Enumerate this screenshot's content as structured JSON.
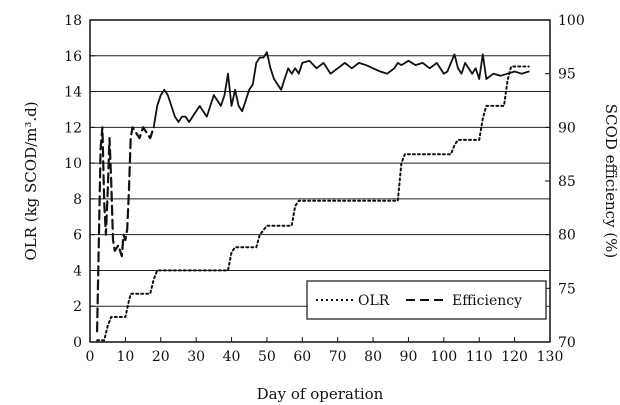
{
  "chart_data": {
    "type": "line",
    "title": "",
    "xlabel": "Day of operation",
    "ylabel_left": "OLR (kg SCOD/m³.d)",
    "ylabel_right": "SCOD efficiency (%)",
    "xlim": [
      0,
      130
    ],
    "ylim_left": [
      0,
      18
    ],
    "ylim_right": [
      70,
      100
    ],
    "x_ticks": [
      "0",
      "10",
      "20",
      "30",
      "40",
      "50",
      "60",
      "70",
      "80",
      "90",
      "100",
      "110",
      "120",
      "130"
    ],
    "y_left_ticks": [
      "0",
      "2",
      "4",
      "6",
      "8",
      "10",
      "12",
      "14",
      "16",
      "18"
    ],
    "y_right_ticks": [
      "70",
      "75",
      "80",
      "85",
      "90",
      "95",
      "100"
    ],
    "grid": "horizontal",
    "legend": {
      "placement": "bottom-right",
      "entries": [
        "OLR",
        "Efficiency"
      ]
    },
    "series": [
      {
        "name": "OLR",
        "axis": "left",
        "style": "dotted",
        "x": [
          2,
          4,
          5,
          6,
          6.5,
          10,
          11,
          11.5,
          17,
          18,
          19,
          39,
          40,
          41,
          47,
          48,
          50,
          57,
          58,
          59,
          87,
          88,
          89,
          102,
          103,
          104,
          110,
          111,
          112,
          117,
          118,
          119,
          124
        ],
        "y": [
          0.1,
          0.1,
          0.9,
          1.4,
          1.4,
          1.4,
          2.3,
          2.7,
          2.7,
          3.5,
          4.0,
          4.0,
          5.0,
          5.3,
          5.3,
          6.0,
          6.5,
          6.5,
          7.6,
          7.9,
          7.9,
          10.0,
          10.5,
          10.5,
          11.0,
          11.3,
          11.3,
          12.5,
          13.2,
          13.2,
          14.6,
          15.4,
          15.4
        ]
      },
      {
        "name": "Efficiency",
        "axis": "right",
        "style": "dashed",
        "x": [
          2,
          3,
          3.5,
          4,
          4.5,
          5,
          5.5,
          6,
          6.5,
          7,
          8,
          9,
          9.5,
          10,
          10.5,
          11,
          11.5,
          12,
          13,
          14,
          15,
          16,
          17,
          18
        ],
        "y": [
          71,
          88,
          90,
          83,
          80,
          84,
          89,
          85,
          79.5,
          78.5,
          79,
          78,
          80,
          79.5,
          80.5,
          84,
          89,
          90,
          89.5,
          89,
          90,
          89.5,
          89,
          90
        ]
      },
      {
        "name": "",
        "axis": "right",
        "style": "solid",
        "x": [
          18,
          19,
          20,
          21,
          22,
          23,
          24,
          25,
          26,
          27,
          28,
          29,
          30,
          31,
          32,
          33,
          34,
          35,
          36,
          37,
          38,
          39,
          40,
          41,
          42,
          43,
          44,
          45,
          46,
          47,
          48,
          49,
          50,
          51,
          52,
          53,
          54,
          55,
          56,
          57,
          58,
          59,
          60,
          62,
          64,
          66,
          68,
          70,
          72,
          74,
          76,
          78,
          80,
          82,
          84,
          86,
          87,
          88,
          90,
          92,
          94,
          96,
          98,
          100,
          101,
          102,
          103,
          104,
          105,
          106,
          108,
          109,
          110,
          111,
          112,
          114,
          116,
          118,
          120,
          122,
          124
        ],
        "y": [
          90,
          92,
          93,
          93.5,
          93,
          92,
          91,
          90.5,
          91,
          91,
          90.5,
          91,
          91.5,
          92,
          91.5,
          91,
          92,
          93,
          92.5,
          92,
          93,
          95,
          92,
          93.5,
          92,
          91.5,
          92.5,
          93.5,
          94,
          96,
          96.5,
          96.5,
          97,
          95.5,
          94.5,
          94,
          93.5,
          94.5,
          95.5,
          95,
          95.5,
          95,
          96,
          96.2,
          95.5,
          96,
          95,
          95.5,
          96,
          95.5,
          96,
          95.8,
          95.5,
          95.2,
          95,
          95.5,
          96,
          95.8,
          96.2,
          95.8,
          96,
          95.5,
          96,
          95,
          95.2,
          96,
          96.8,
          95.5,
          95,
          96,
          95,
          95.5,
          94.5,
          96.8,
          94.5,
          95,
          94.8,
          95,
          95.2,
          95,
          95.2
        ]
      }
    ]
  }
}
